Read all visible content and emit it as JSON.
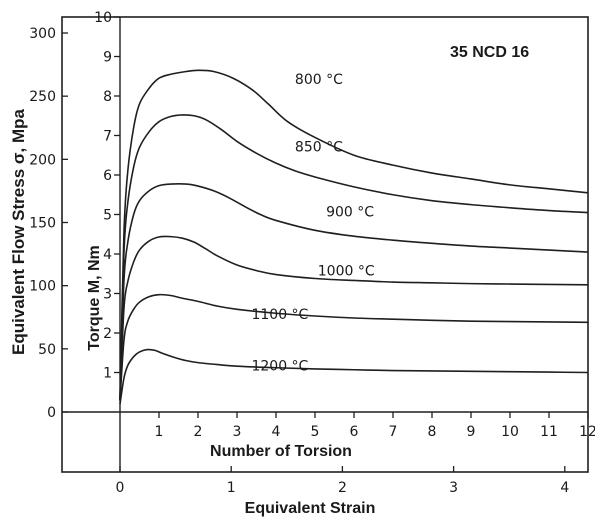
{
  "chart_data": {
    "type": "line",
    "title": "35 NCD 16",
    "stress_axis": {
      "label": "Equivalent Flow Stress σ, Mpa",
      "ticks": [
        0,
        50,
        100,
        150,
        200,
        250,
        300
      ],
      "range": [
        0,
        300
      ]
    },
    "torque_axis": {
      "label": "Torque M, Nm",
      "ticks": [
        1,
        2,
        3,
        4,
        5,
        6,
        7,
        8,
        9,
        10
      ],
      "range": [
        0,
        10
      ]
    },
    "torsion_axis": {
      "label": "Number of Torsion",
      "ticks": [
        1,
        2,
        3,
        4,
        5,
        6,
        7,
        8,
        9,
        10,
        11,
        12
      ],
      "range": [
        0,
        12
      ]
    },
    "strain_axis": {
      "label": "Equivalent Strain",
      "ticks": [
        0,
        1,
        2,
        3,
        4
      ],
      "range": [
        -0.4,
        4.2
      ]
    },
    "series": [
      {
        "name": "800 °C",
        "label_pos": [
          5.1,
          8.3
        ],
        "x": [
          0,
          0.1,
          0.2,
          0.35,
          0.5,
          0.75,
          1,
          1.3,
          1.7,
          2.0,
          2.4,
          2.9,
          3.4,
          3.8,
          4.3,
          5,
          6,
          7,
          8,
          9,
          10,
          11,
          12
        ],
        "y": [
          0.3,
          4.5,
          6.1,
          7.2,
          7.8,
          8.2,
          8.45,
          8.55,
          8.62,
          8.65,
          8.62,
          8.45,
          8.15,
          7.8,
          7.35,
          6.95,
          6.5,
          6.25,
          6.05,
          5.9,
          5.75,
          5.65,
          5.55
        ]
      },
      {
        "name": "850 °C",
        "label_pos": [
          5.1,
          6.6
        ],
        "x": [
          0,
          0.1,
          0.2,
          0.35,
          0.5,
          0.75,
          1,
          1.3,
          1.6,
          1.9,
          2.2,
          2.6,
          3,
          3.5,
          4,
          4.5,
          5,
          6,
          7,
          8,
          9,
          10,
          11,
          12
        ],
        "y": [
          0.3,
          4.0,
          5.3,
          6.2,
          6.7,
          7.1,
          7.35,
          7.48,
          7.52,
          7.5,
          7.4,
          7.15,
          6.85,
          6.55,
          6.3,
          6.1,
          5.95,
          5.7,
          5.5,
          5.35,
          5.25,
          5.17,
          5.1,
          5.05
        ]
      },
      {
        "name": "900 °C",
        "label_pos": [
          5.9,
          4.95
        ],
        "x": [
          0,
          0.1,
          0.2,
          0.35,
          0.5,
          0.75,
          1,
          1.3,
          1.7,
          2.0,
          2.4,
          2.8,
          3.2,
          3.6,
          4,
          5,
          6,
          7,
          8,
          9,
          10,
          11,
          12
        ],
        "y": [
          0.3,
          3.3,
          4.3,
          5.0,
          5.35,
          5.6,
          5.73,
          5.77,
          5.77,
          5.72,
          5.6,
          5.42,
          5.2,
          5.0,
          4.85,
          4.6,
          4.45,
          4.35,
          4.27,
          4.2,
          4.15,
          4.1,
          4.05
        ]
      },
      {
        "name": "1000 °C",
        "label_pos": [
          5.8,
          3.45
        ],
        "x": [
          0,
          0.1,
          0.2,
          0.35,
          0.5,
          0.75,
          1,
          1.3,
          1.6,
          1.9,
          2.2,
          2.5,
          3,
          3.5,
          4,
          5,
          6,
          7,
          8,
          9,
          10,
          11,
          12
        ],
        "y": [
          0.3,
          2.6,
          3.3,
          3.8,
          4.1,
          4.33,
          4.43,
          4.44,
          4.4,
          4.3,
          4.13,
          3.95,
          3.72,
          3.58,
          3.48,
          3.38,
          3.33,
          3.29,
          3.27,
          3.25,
          3.24,
          3.23,
          3.22
        ]
      },
      {
        "name": "1100 °C",
        "label_pos": [
          4.1,
          2.35
        ],
        "x": [
          0,
          0.1,
          0.2,
          0.35,
          0.5,
          0.75,
          1,
          1.3,
          1.6,
          2.0,
          2.5,
          3,
          4,
          5,
          6,
          7,
          8,
          9,
          10,
          11,
          12
        ],
        "y": [
          0.3,
          1.8,
          2.3,
          2.6,
          2.78,
          2.92,
          2.97,
          2.95,
          2.88,
          2.8,
          2.68,
          2.6,
          2.5,
          2.43,
          2.38,
          2.35,
          2.32,
          2.3,
          2.29,
          2.28,
          2.27
        ]
      },
      {
        "name": "1200 °C",
        "label_pos": [
          4.1,
          1.05
        ],
        "x": [
          0,
          0.1,
          0.2,
          0.35,
          0.5,
          0.7,
          0.9,
          1.1,
          1.4,
          1.7,
          2.0,
          2.5,
          3,
          4,
          5,
          6,
          7,
          8,
          9,
          10,
          11,
          12
        ],
        "y": [
          0.2,
          0.85,
          1.18,
          1.4,
          1.52,
          1.58,
          1.56,
          1.48,
          1.38,
          1.3,
          1.25,
          1.2,
          1.16,
          1.12,
          1.09,
          1.07,
          1.05,
          1.04,
          1.03,
          1.02,
          1.01,
          1.0
        ]
      }
    ]
  }
}
